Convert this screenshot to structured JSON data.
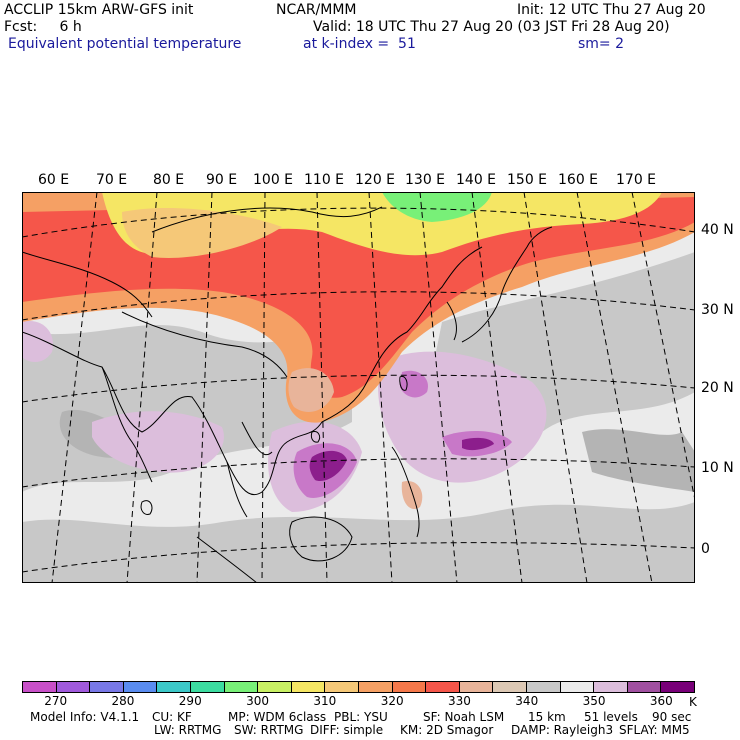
{
  "header": {
    "line1_left": "ACCLIP 15km ARW-GFS init",
    "line1_center": "NCAR/MMM",
    "line1_right": "Init: 12 UTC Thu 27 Aug 20",
    "line2_left": "Fcst:     6 h",
    "line2_right": "Valid: 18 UTC Thu 27 Aug 20 (03 JST Fri 28 Aug 20)",
    "field_name": "Equivalent potential temperature",
    "level": "at k-index =  51",
    "smoothing": "sm= 2"
  },
  "map": {
    "lon_labels": [
      "60 E",
      "70 E",
      "80 E",
      "90 E",
      "100 E",
      "110 E",
      "120 E",
      "130 E",
      "140 E",
      "150 E",
      "160 E",
      "170 E"
    ],
    "lat_labels": [
      "40 N",
      "30 N",
      "20 N",
      "10 N",
      "0"
    ],
    "colors": {
      "ocean_base": "#ebebeb",
      "gray_mid": "#c8c8c8",
      "gray_dark": "#b4b4b4",
      "warm_red": "#f5564a",
      "warm_orange": "#f5a064",
      "warm_yellow": "#f5e664",
      "green": "#78f078",
      "lilac": "#dcbedc",
      "purple": "#c878c8",
      "dark_purple": "#8c1e8c",
      "salmon": "#e8b49a"
    }
  },
  "colorbar": {
    "colors": [
      "#c850c8",
      "#a05adc",
      "#7878e6",
      "#5a8cf0",
      "#3cc8c8",
      "#3cdca0",
      "#78f078",
      "#c8f064",
      "#f5e664",
      "#f5c878",
      "#f5a064",
      "#f5784a",
      "#f5564a",
      "#e8b49a",
      "#dcc8b4",
      "#c8c8c8",
      "#ebebeb",
      "#dcbedc",
      "#a050a0",
      "#780078"
    ],
    "ticks": [
      "270",
      "280",
      "290",
      "300",
      "310",
      "320",
      "330",
      "340",
      "350",
      "360"
    ],
    "unit": "K"
  },
  "model_info": {
    "line1": [
      "Model Info: V4.1.1",
      "CU: KF",
      "MP: WDM 6class",
      "PBL: YSU",
      "SF: Noah LSM",
      "15 km",
      "51 levels",
      "90 sec"
    ],
    "line2": [
      "LW: RRTMG",
      "SW: RRTMG",
      "DIFF: simple",
      "KM: 2D Smagor",
      "DAMP: Rayleigh3",
      "SFLAY: MM5"
    ]
  }
}
